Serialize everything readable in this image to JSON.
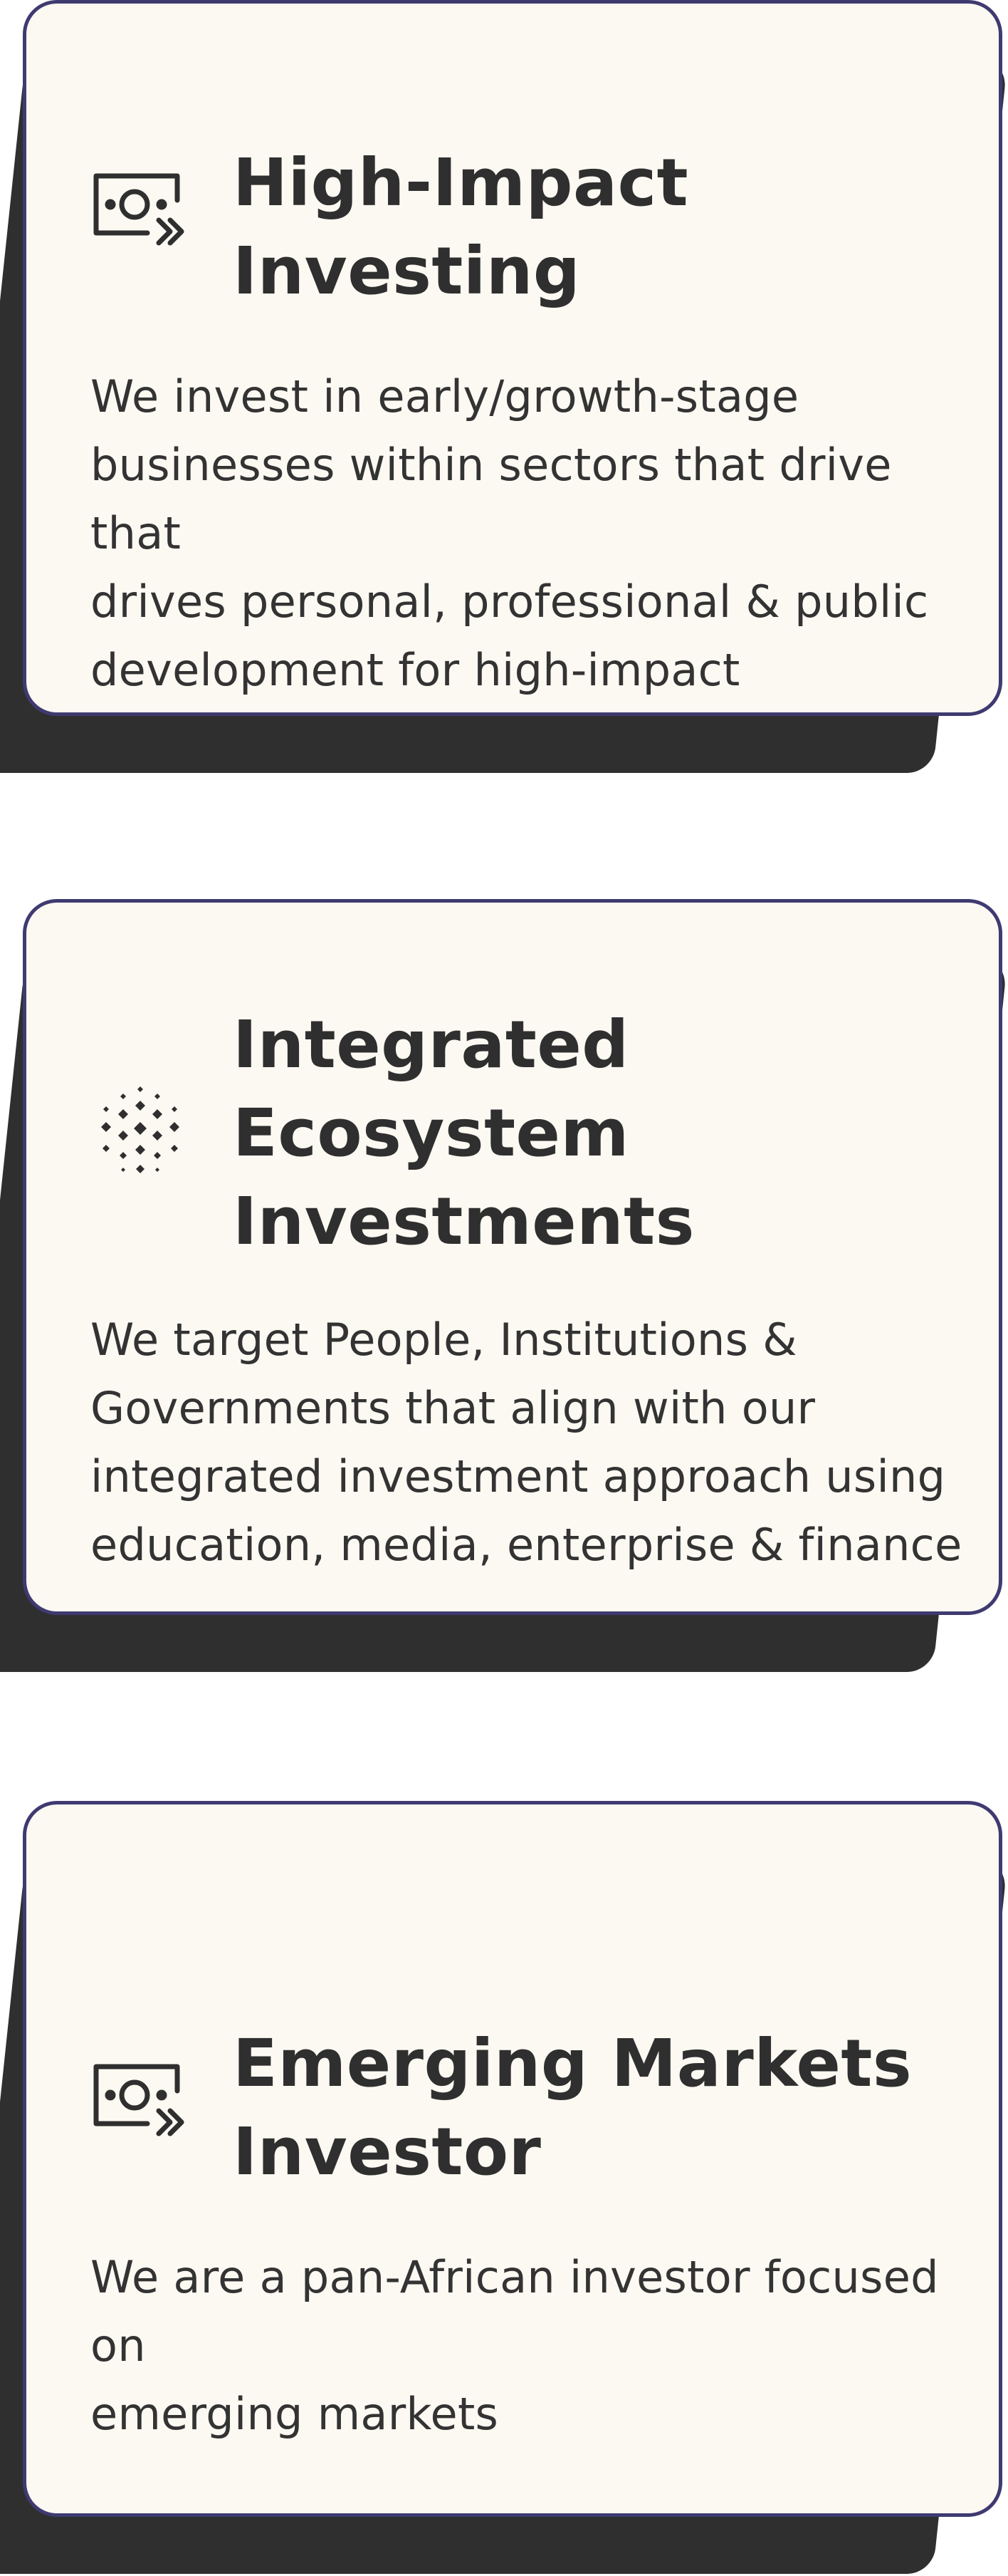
{
  "cards": [
    {
      "icon": "money-transfer-icon",
      "title_line1": "High-Impact",
      "title_line2": "Investing",
      "desc_line1": "We invest in  early/growth-stage",
      "desc_line2": "businesses within sectors that drive that",
      "desc_line3": "drives personal, professional & public",
      "desc_line4": "development for high-impact"
    },
    {
      "icon": "diamond-grid-icon",
      "title_line1": "Integrated",
      "title_line2": "Ecosystem",
      "title_line3": "Investments",
      "desc_line1": "We target People, Institutions &",
      "desc_line2": "Governments that align with our",
      "desc_line3": "integrated investment approach using",
      "desc_line4": "education, media, enterprise & finance"
    },
    {
      "icon": "money-transfer-icon",
      "title_line1": "Emerging Markets",
      "title_line2": "Investor",
      "desc_line1": "We are a pan-African investor focused on",
      "desc_line2": "emerging markets"
    }
  ],
  "colors": {
    "card_background": "#fcf9f2",
    "card_border": "#3f3a70",
    "shadow": "#2f2f2f",
    "text": "#2f2f2f"
  }
}
